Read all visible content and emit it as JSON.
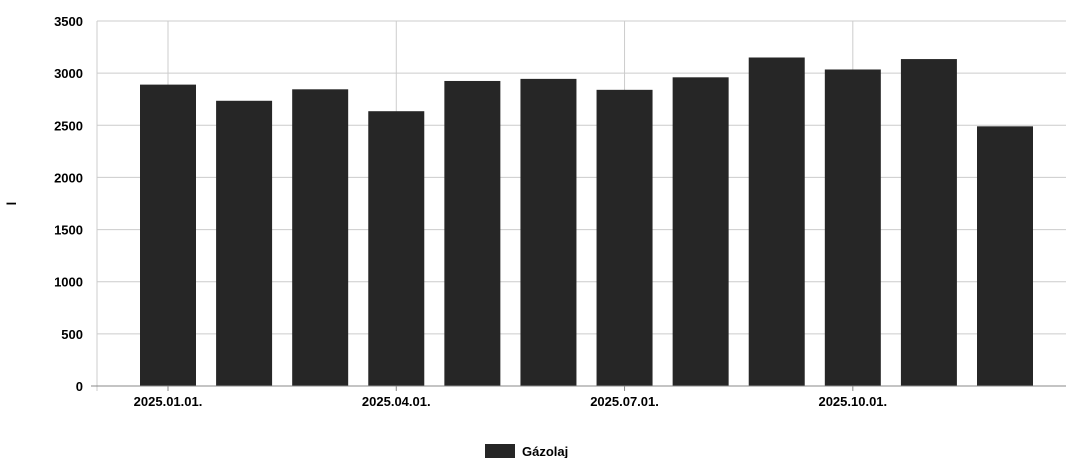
{
  "chart_data": {
    "type": "bar",
    "ylabel": "l",
    "ylim": [
      0,
      3500
    ],
    "yticks": [
      0,
      500,
      1000,
      1500,
      2000,
      2500,
      3000,
      3500
    ],
    "x_tick_labels": [
      "2025.01.01.",
      "2025.04.01.",
      "2025.07.01.",
      "2025.10.01."
    ],
    "x_tick_positions_month_index": [
      0,
      3,
      6,
      9
    ],
    "categories": [
      "2025.01.",
      "2025.02.",
      "2025.03.",
      "2025.04.",
      "2025.05.",
      "2025.06.",
      "2025.07.",
      "2025.08.",
      "2025.09.",
      "2025.10.",
      "2025.11.",
      "2025.12."
    ],
    "grid": true,
    "legend_position": "bottom-center",
    "series": [
      {
        "name": "Gázolaj",
        "color": "#262626",
        "values": [
          2890,
          2735,
          2845,
          2635,
          2925,
          2945,
          2840,
          2960,
          3150,
          3035,
          3135,
          2490
        ]
      }
    ]
  }
}
